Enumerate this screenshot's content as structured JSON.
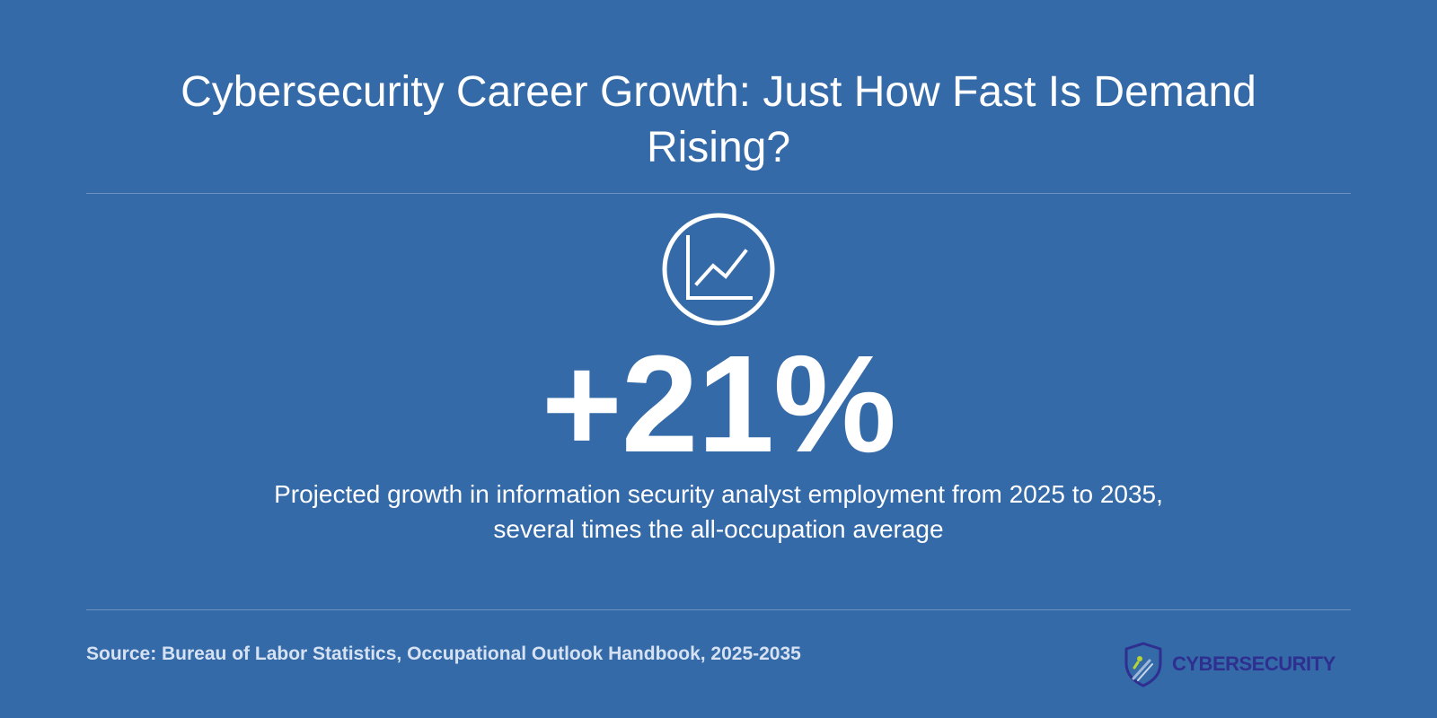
{
  "title": "Cybersecurity Career Growth: Just How Fast Is Demand Rising?",
  "icon": "line-chart-icon",
  "stat": {
    "value": "+21%"
  },
  "description": "Projected growth in information security analyst employment from 2025 to 2035, several times the all-occupation average",
  "source": "Source: Bureau of Labor Statistics, Occupational Outlook Handbook, 2025-2035",
  "logo": {
    "text": "CYBERSECURITY",
    "icon": "shield-icon"
  },
  "colors": {
    "background": "#356aa9",
    "text": "#ffffff",
    "source_text": "#d6e2f2",
    "logo_text": "#2e2f8f",
    "logo_accent": "#b5d334"
  }
}
